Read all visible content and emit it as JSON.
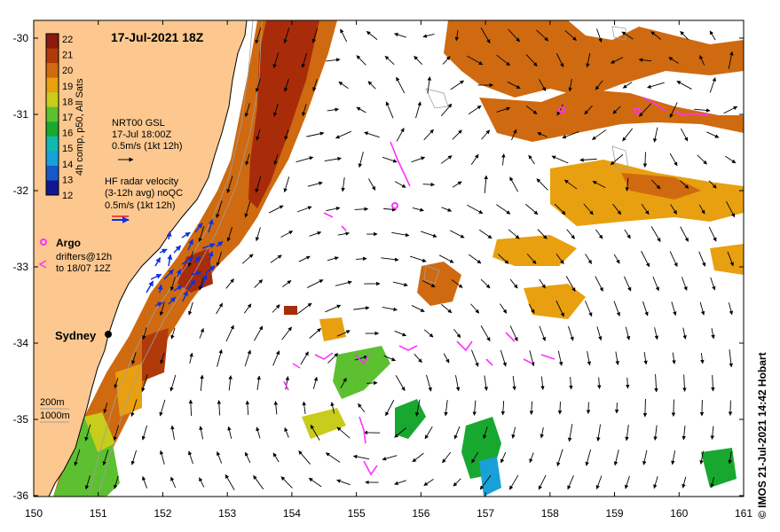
{
  "title": "17-Jul-2021 18Z",
  "credit": "© IMOS 21-Jul-2021 14:42 Hobart",
  "colorbar": {
    "label": "4h comp, p50, All Sats",
    "ticks": [
      "22",
      "21",
      "20",
      "19",
      "18",
      "17",
      "16",
      "15",
      "14",
      "13",
      "12"
    ],
    "colors": [
      "#8c1a0e",
      "#b03a0a",
      "#cf6a10",
      "#e8a010",
      "#c8cc1a",
      "#5cc030",
      "#18a830",
      "#10b8b0",
      "#1aa0d8",
      "#1858c8",
      "#101890"
    ]
  },
  "legend": {
    "gsl_title": "NRT00 GSL",
    "gsl_time": "17-Jul 18:00Z",
    "gsl_scale": "0.5m/s (1kt 12h)",
    "radar_title": "HF radar velocity",
    "radar_avg": "(3-12h avg) noQC",
    "radar_scale": "0.5m/s (1kt 12h)",
    "argo_label": "Argo",
    "drifters_line1": "drifters@12h",
    "drifters_line2": "to 18/07 12Z",
    "depth_200": "200m",
    "depth_1000": "1000m"
  },
  "city": "Sydney",
  "axes": {
    "x_ticks": [
      "150",
      "151",
      "152",
      "153",
      "154",
      "155",
      "156",
      "157",
      "158",
      "159",
      "160",
      "161"
    ],
    "y_ticks": [
      "-30",
      "-31",
      "-32",
      "-33",
      "-34",
      "-35",
      "-36"
    ]
  },
  "colors": {
    "land": "#fcc890",
    "argo": "#ff30ff",
    "radar": "#1030e0",
    "gsl_arrow": "#000000"
  }
}
